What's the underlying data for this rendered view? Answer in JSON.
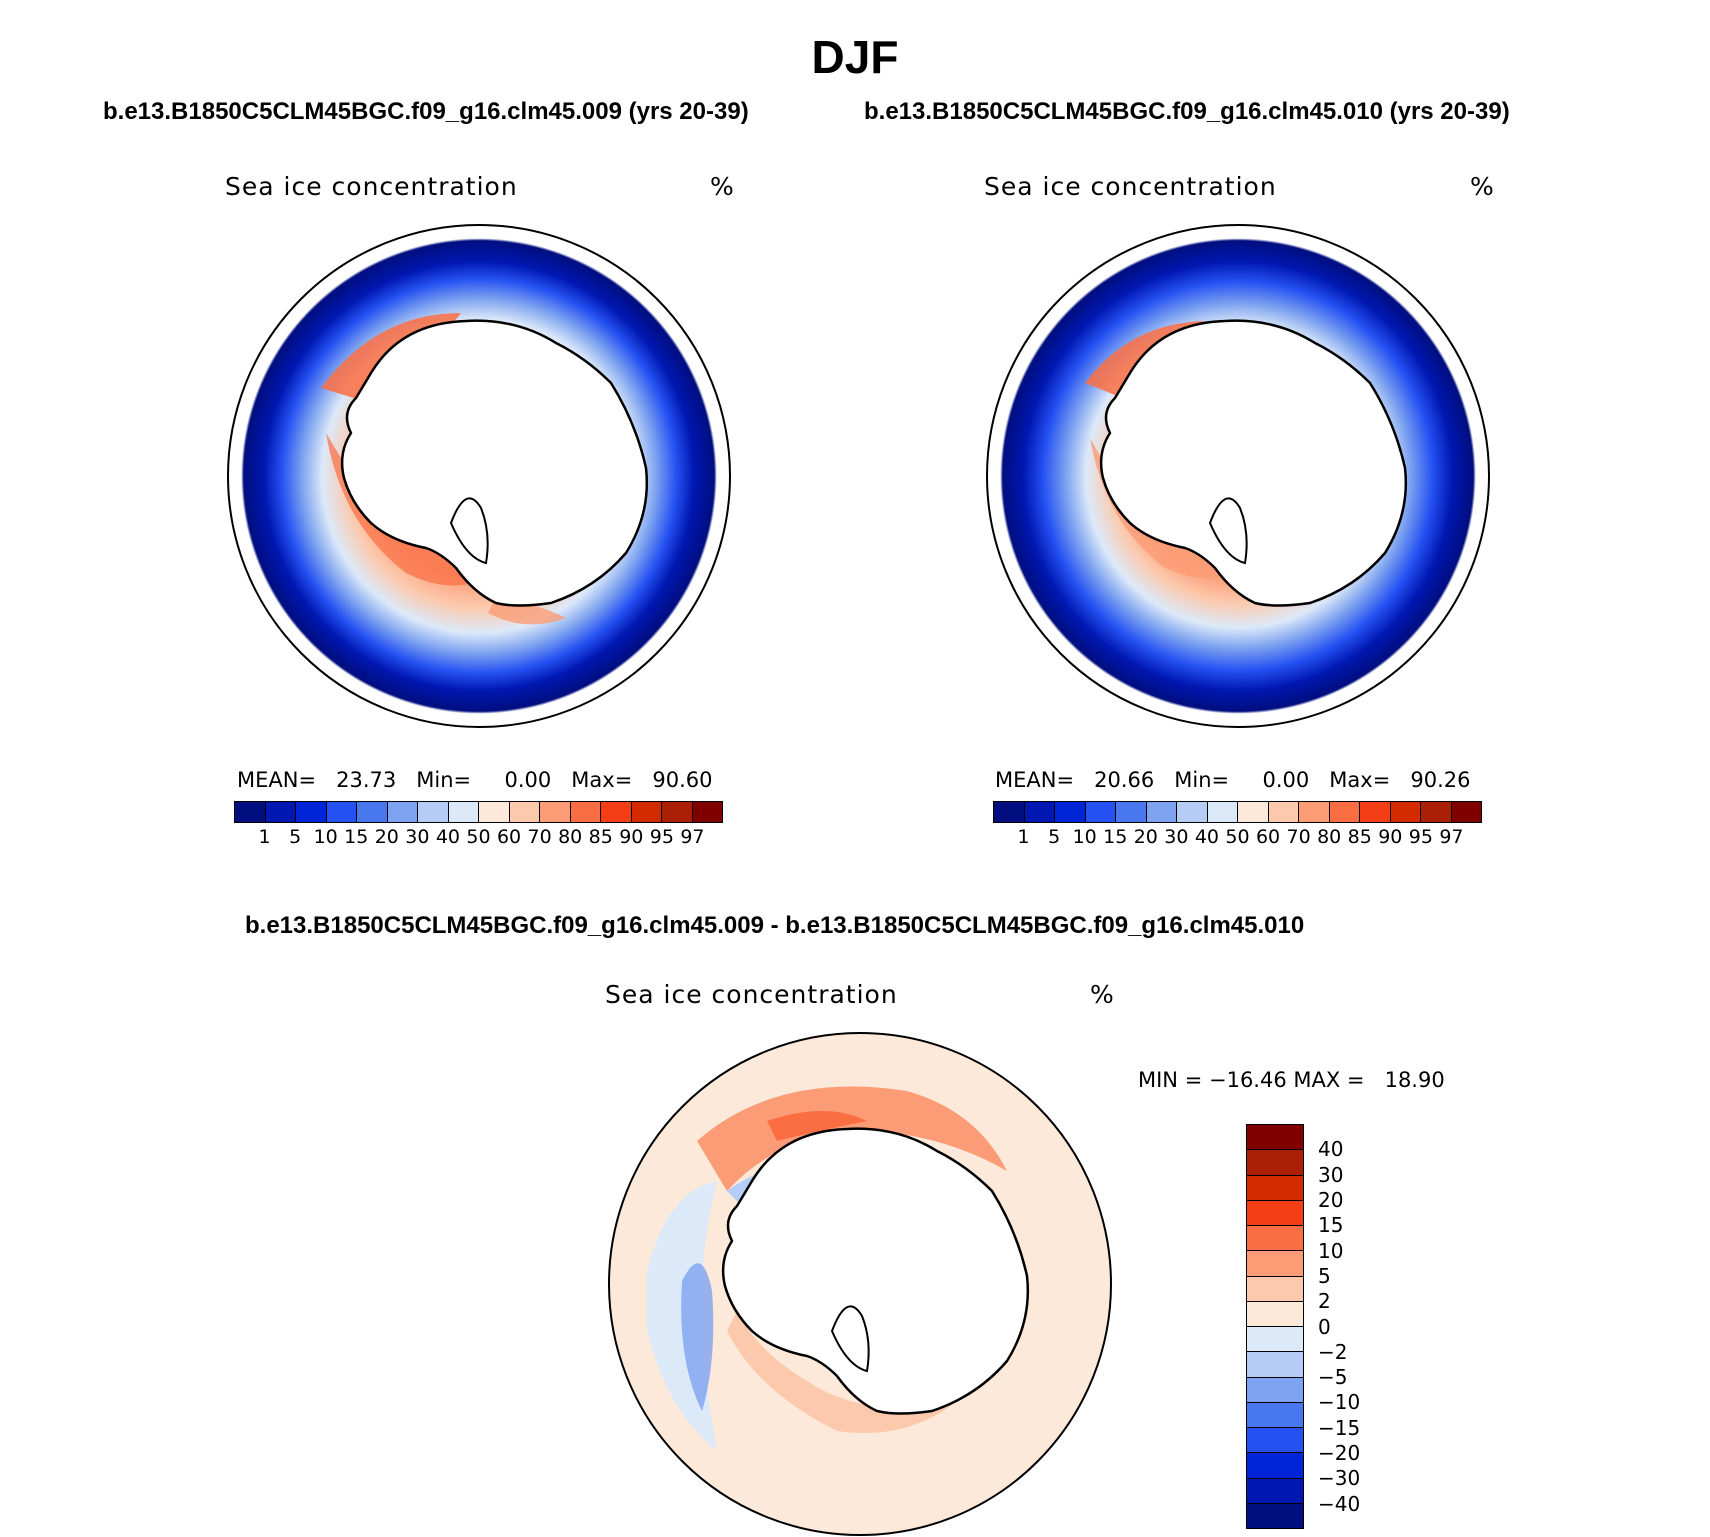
{
  "page_title": "DJF",
  "chart_data": [
    {
      "type": "polar-contour-map",
      "region": "Antarctic (south polar stereographic)",
      "subtitle": "b.e13.B1850C5CLM45BGC.f09_g16.clm45.009 (yrs 20-39)",
      "variable": "Sea ice concentration",
      "units": "%",
      "stats": {
        "mean_label": "MEAN=",
        "mean": "23.73",
        "min_label": "Min=",
        "min": "0.00",
        "max_label": "Max=",
        "max": "90.60"
      },
      "colorbar": {
        "ticks": [
          "1",
          "5",
          "10",
          "15",
          "20",
          "30",
          "40",
          "50",
          "60",
          "70",
          "80",
          "85",
          "90",
          "95",
          "97"
        ],
        "colors": [
          "#000e7f",
          "#0017b1",
          "#0025d8",
          "#2551f2",
          "#4977ee",
          "#7ea3f0",
          "#b5cdf6",
          "#dce9f9",
          "#fde9da",
          "#fcc9ad",
          "#fb9c76",
          "#fb6e43",
          "#f43e15",
          "#d42a00",
          "#ac1f07",
          "#800000"
        ]
      }
    },
    {
      "type": "polar-contour-map",
      "region": "Antarctic (south polar stereographic)",
      "subtitle": "b.e13.B1850C5CLM45BGC.f09_g16.clm45.010 (yrs 20-39)",
      "variable": "Sea ice concentration",
      "units": "%",
      "stats": {
        "mean_label": "MEAN=",
        "mean": "20.66",
        "min_label": "Min=",
        "min": "0.00",
        "max_label": "Max=",
        "max": "90.26"
      },
      "colorbar": {
        "ticks": [
          "1",
          "5",
          "10",
          "15",
          "20",
          "30",
          "40",
          "50",
          "60",
          "70",
          "80",
          "85",
          "90",
          "95",
          "97"
        ],
        "colors": [
          "#000e7f",
          "#0017b1",
          "#0025d8",
          "#2551f2",
          "#4977ee",
          "#7ea3f0",
          "#b5cdf6",
          "#dce9f9",
          "#fde9da",
          "#fcc9ad",
          "#fb9c76",
          "#fb6e43",
          "#f43e15",
          "#d42a00",
          "#ac1f07",
          "#800000"
        ]
      }
    },
    {
      "type": "polar-contour-map-difference",
      "region": "Antarctic (south polar stereographic)",
      "subtitle": "b.e13.B1850C5CLM45BGC.f09_g16.clm45.009 - b.e13.B1850C5CLM45BGC.f09_g16.clm45.010",
      "variable": "Sea ice concentration",
      "units": "%",
      "stats": {
        "min_label": "MIN =",
        "min": "−16.46",
        "max_label": "MAX =",
        "max": "18.90"
      },
      "colorbar": {
        "ticks": [
          "40",
          "30",
          "20",
          "15",
          "10",
          "5",
          "2",
          "0",
          "−2",
          "−5",
          "−10",
          "−15",
          "−20",
          "−30",
          "−40"
        ],
        "colors": [
          "#800000",
          "#ac1f07",
          "#d42a00",
          "#f43e15",
          "#fb6e43",
          "#fb9c76",
          "#fcc9ad",
          "#fde9da",
          "#dce9f9",
          "#b5cdf6",
          "#7ea3f0",
          "#4977ee",
          "#2551f2",
          "#0025d8",
          "#0017b1",
          "#000e7f"
        ]
      }
    }
  ]
}
